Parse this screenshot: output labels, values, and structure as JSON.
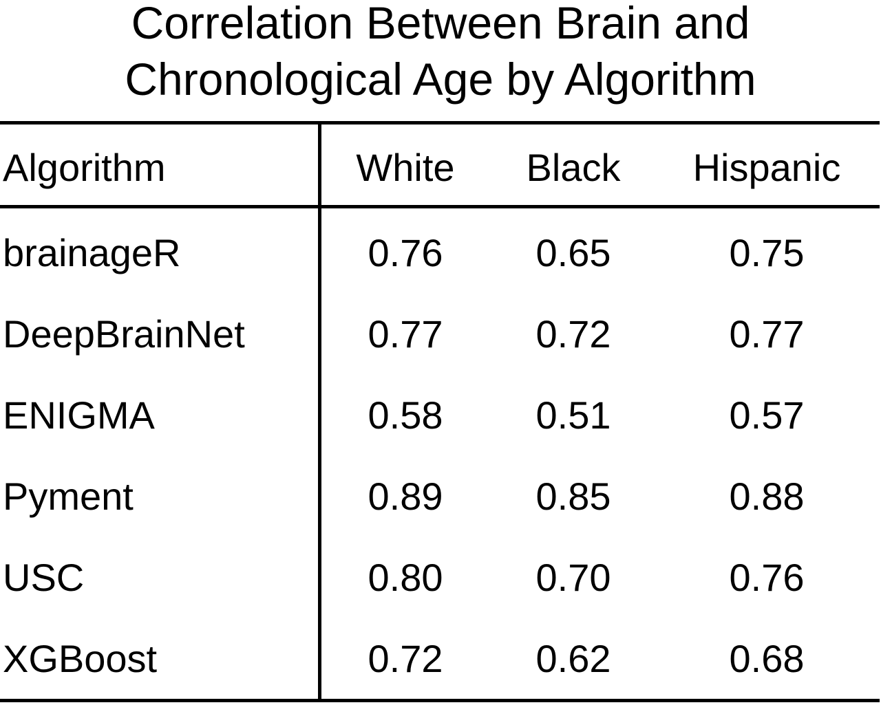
{
  "chart_data": {
    "type": "table",
    "title_lines": [
      "Correlation Between Brain and",
      "Chronological Age by Algorithm"
    ],
    "columns": [
      "Algorithm",
      "White",
      "Black",
      "Hispanic"
    ],
    "rows": [
      {
        "algorithm": "brainageR",
        "values": [
          "0.76",
          "0.65",
          "0.75"
        ]
      },
      {
        "algorithm": "DeepBrainNet",
        "values": [
          "0.77",
          "0.72",
          "0.77"
        ]
      },
      {
        "algorithm": "ENIGMA",
        "values": [
          "0.58",
          "0.51",
          "0.57"
        ]
      },
      {
        "algorithm": "Pyment",
        "values": [
          "0.89",
          "0.85",
          "0.88"
        ]
      },
      {
        "algorithm": "USC",
        "values": [
          "0.80",
          "0.70",
          "0.76"
        ]
      },
      {
        "algorithm": "XGBoost",
        "values": [
          "0.72",
          "0.62",
          "0.68"
        ]
      }
    ]
  }
}
